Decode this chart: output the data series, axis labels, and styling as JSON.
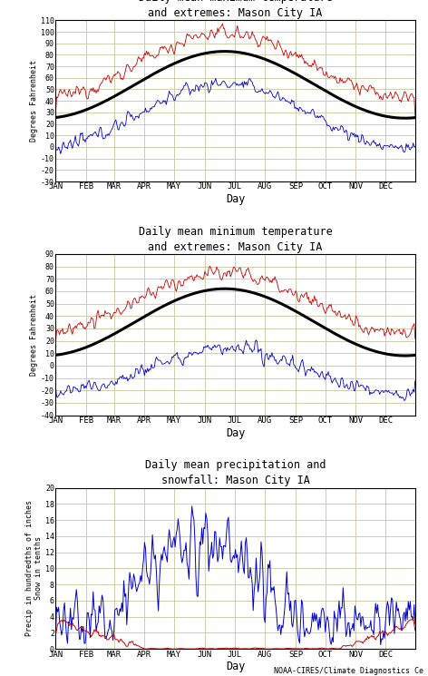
{
  "title1": "Daily mean maximum temperature\nand extremes: Mason City IA",
  "title2": "Daily mean minimum temperature\nand extremes: Mason City IA",
  "title3": "Daily mean precipitation and\nsnowfall: Mason City IA",
  "ylabel1": "Degrees Fahrenheit",
  "ylabel2": "Degrees Fahrenheit",
  "ylabel3": "Precip in hundredths of inches\nSnow in tenths",
  "xlabel": "Day",
  "months": [
    "JAN",
    "FEB",
    "MAR",
    "APR",
    "MAY",
    "JUN",
    "JUL",
    "AUG",
    "SEP",
    "OCT",
    "NOV",
    "DEC"
  ],
  "background_color": "#ffffff",
  "grid_color": "#c8c8a0",
  "line_colors": {
    "mean": "#000000",
    "record_high": "#cc0000",
    "record_low": "#0000cc",
    "precip": "#cc0000",
    "snow": "#0000cc"
  },
  "plot1": {
    "ylim": [
      -30,
      110
    ],
    "yticks": [
      -30,
      -20,
      -10,
      0,
      10,
      20,
      30,
      40,
      50,
      60,
      70,
      80,
      90,
      100,
      110
    ]
  },
  "plot2": {
    "ylim": [
      -40,
      90
    ],
    "yticks": [
      -40,
      -30,
      -20,
      -10,
      0,
      10,
      20,
      30,
      40,
      50,
      60,
      70,
      80,
      90
    ]
  },
  "plot3": {
    "ylim": [
      0,
      20
    ],
    "yticks": [
      0,
      2,
      4,
      6,
      8,
      10,
      12,
      14,
      16,
      18,
      20
    ]
  },
  "footer": "NOAA-CIRES/Climate Diagnostics Ce"
}
